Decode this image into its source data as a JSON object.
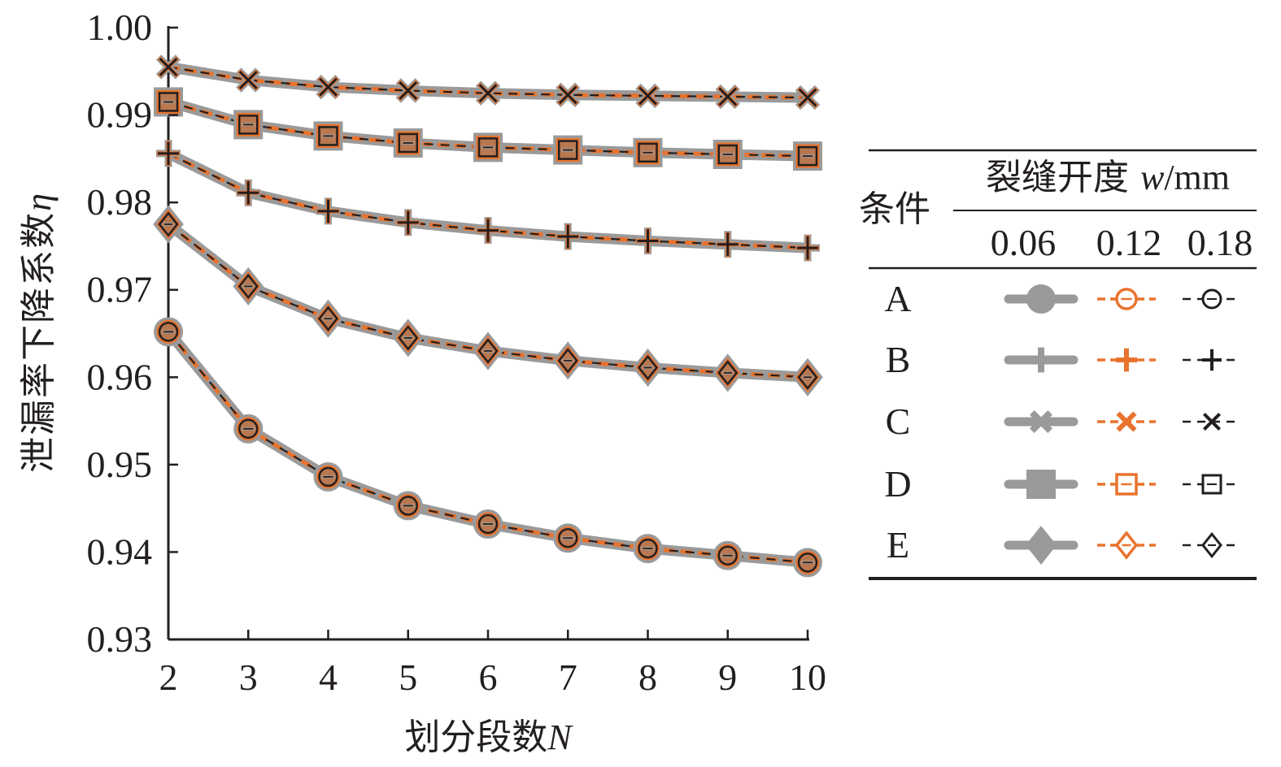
{
  "chart_data": {
    "type": "line",
    "xlabel_main": "划分段数",
    "xlabel_var": "N",
    "ylabel_main": "泄漏率下降系数",
    "ylabel_var": "η",
    "x": [
      2,
      3,
      4,
      5,
      6,
      7,
      8,
      9,
      10
    ],
    "xticks": [
      "2",
      "3",
      "4",
      "5",
      "6",
      "7",
      "8",
      "9",
      "10"
    ],
    "yticks": [
      "0.93",
      "0.94",
      "0.95",
      "0.96",
      "0.97",
      "0.98",
      "0.99",
      "1.00"
    ],
    "xlim": [
      2,
      10
    ],
    "ylim": [
      0.93,
      1.0
    ],
    "grid": false,
    "series": [
      {
        "name": "A",
        "marker": "circle",
        "values": [
          0.9652,
          0.9541,
          0.9486,
          0.9453,
          0.9432,
          0.9416,
          0.9404,
          0.9396,
          0.9388
        ]
      },
      {
        "name": "B",
        "marker": "plus",
        "values": [
          0.9856,
          0.9811,
          0.979,
          0.9777,
          0.9768,
          0.9761,
          0.9756,
          0.9752,
          0.9748
        ]
      },
      {
        "name": "C",
        "marker": "cross",
        "values": [
          0.9955,
          0.994,
          0.9932,
          0.9928,
          0.9925,
          0.9923,
          0.9922,
          0.9921,
          0.992
        ]
      },
      {
        "name": "D",
        "marker": "square",
        "values": [
          0.9915,
          0.9889,
          0.9876,
          0.9868,
          0.9863,
          0.986,
          0.9857,
          0.9855,
          0.9853
        ]
      },
      {
        "name": "E",
        "marker": "diamond",
        "values": [
          0.9775,
          0.9704,
          0.9667,
          0.9645,
          0.963,
          0.9619,
          0.9611,
          0.9605,
          0.96
        ]
      }
    ],
    "styles": [
      {
        "width": "0.06",
        "color": "#9a9a9a",
        "dash": "solid"
      },
      {
        "width": "0.12",
        "color": "#e9732e",
        "dash": "dashed"
      },
      {
        "width": "0.18",
        "color": "#231f20",
        "dash": "dashed"
      }
    ],
    "legend": {
      "position": "right",
      "condition_header": "条件",
      "width_header_main": "裂缝开度",
      "width_header_var": "w",
      "width_header_unit": "/mm",
      "columns": [
        "0.06",
        "0.12",
        "0.18"
      ],
      "rows": [
        "A",
        "B",
        "C",
        "D",
        "E"
      ]
    }
  }
}
